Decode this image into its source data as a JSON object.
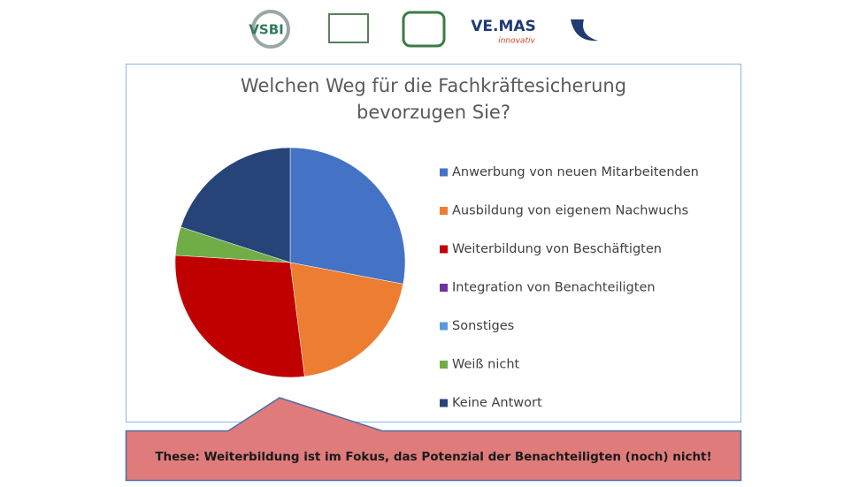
{
  "logos": [
    "VSBI",
    "VE.MAS",
    "innovativ"
  ],
  "chart_data": {
    "type": "pie",
    "title": [
      "Welchen Weg für die Fachkräftesicherung",
      "bevorzugen Sie?"
    ],
    "categories": [
      "Anwerbung von neuen Mitarbeitenden",
      "Ausbildung von eigenem Nachwuchs",
      "Weiterbildung von Beschäftigten",
      "Integration von Benachteiligten",
      "Sonstiges",
      "Weiß nicht",
      "Keine Antwort"
    ],
    "values": [
      28,
      20,
      28,
      0,
      0,
      4,
      20
    ],
    "colors": [
      "#4472c4",
      "#ed7d31",
      "#c00000",
      "#7030a0",
      "#5b9bd5",
      "#70ad47",
      "#264478"
    ],
    "legend": "right",
    "annotation": "These: Weiterbildung ist im Fokus, das Potenzial der Benachteiligten (noch) nicht!"
  }
}
